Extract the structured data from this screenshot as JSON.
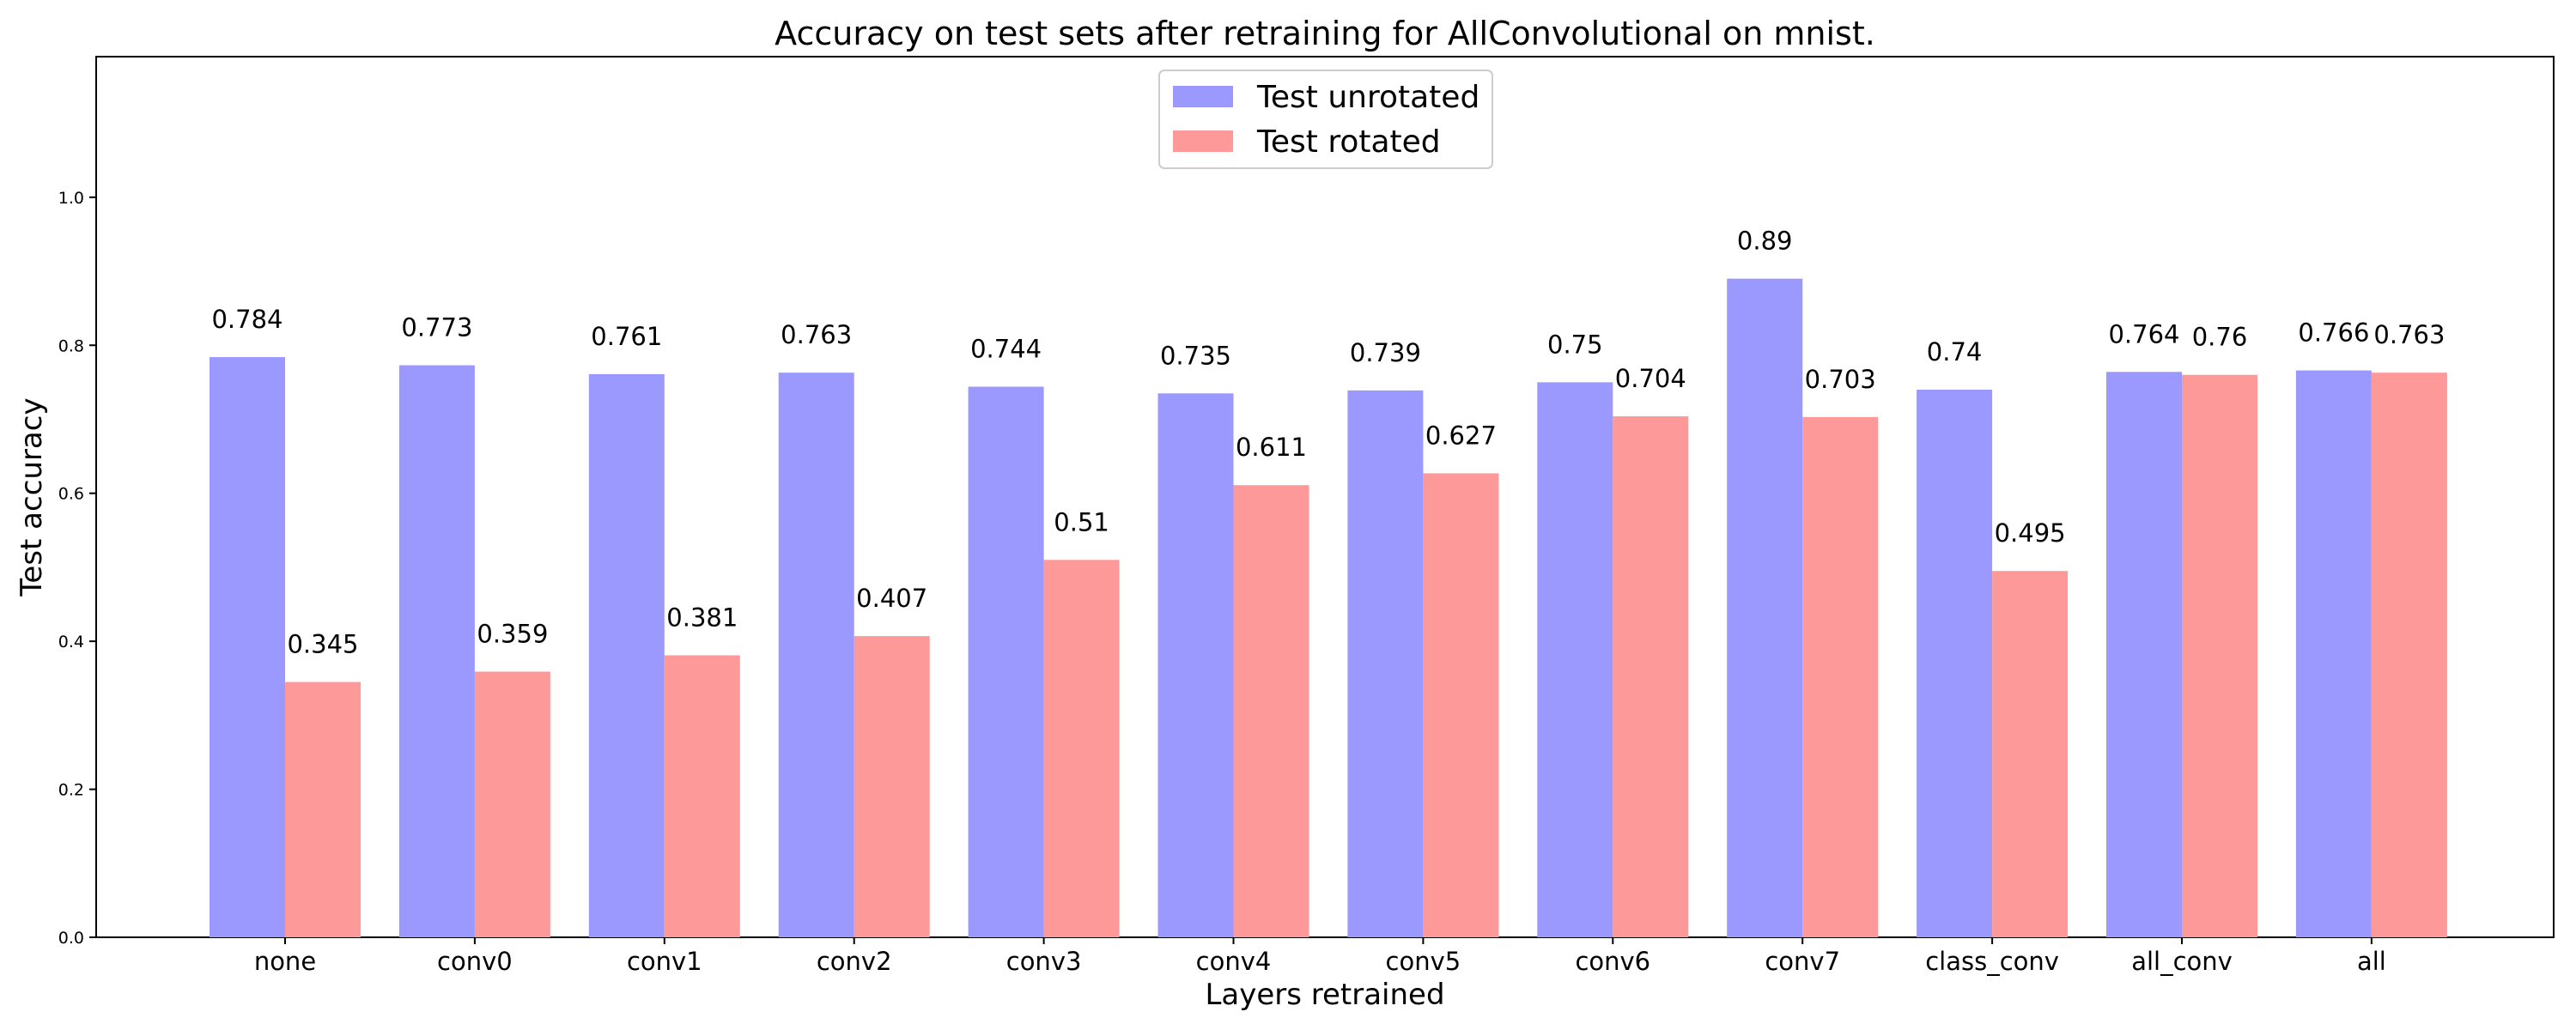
{
  "chart_data": {
    "type": "bar",
    "title": "Accuracy on test sets after retraining for AllConvolutional on mnist.",
    "xlabel": "Layers retrained",
    "ylabel": "Test accuracy",
    "ylim": [
      0,
      1.19
    ],
    "yticks": [
      "0.0",
      "0.2",
      "0.4",
      "0.6",
      "0.8",
      "1.0"
    ],
    "grid": false,
    "legend_position": "top-center",
    "categories": [
      "none",
      "conv0",
      "conv1",
      "conv2",
      "conv3",
      "conv4",
      "conv5",
      "conv6",
      "conv7",
      "class_conv",
      "all_conv",
      "all"
    ],
    "series": [
      {
        "name": "Test unrotated",
        "color": "#9b99fe",
        "values": [
          0.784,
          0.773,
          0.761,
          0.763,
          0.744,
          0.735,
          0.739,
          0.75,
          0.89,
          0.74,
          0.764,
          0.766
        ],
        "labels": [
          "0.784",
          "0.773",
          "0.761",
          "0.763",
          "0.744",
          "0.735",
          "0.739",
          "0.75",
          "0.89",
          "0.74",
          "0.764",
          "0.766"
        ]
      },
      {
        "name": "Test rotated",
        "color": "#fe9999",
        "values": [
          0.345,
          0.359,
          0.381,
          0.407,
          0.51,
          0.611,
          0.627,
          0.704,
          0.703,
          0.495,
          0.76,
          0.763
        ],
        "labels": [
          "0.345",
          "0.359",
          "0.381",
          "0.407",
          "0.51",
          "0.611",
          "0.627",
          "0.704",
          "0.703",
          "0.495",
          "0.76",
          "0.763"
        ]
      }
    ]
  }
}
